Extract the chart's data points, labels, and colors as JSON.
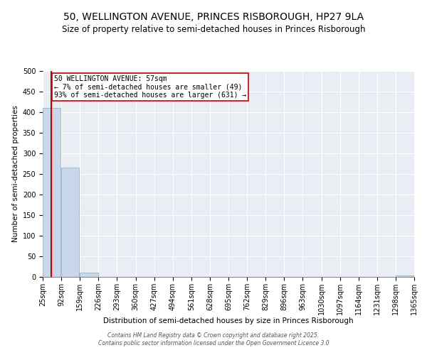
{
  "title": "50, WELLINGTON AVENUE, PRINCES RISBOROUGH, HP27 9LA",
  "subtitle": "Size of property relative to semi-detached houses in Princes Risborough",
  "xlabel": "Distribution of semi-detached houses by size in Princes Risborough",
  "ylabel": "Number of semi-detached properties",
  "bar_values": [
    410,
    265,
    10,
    0,
    0,
    0,
    0,
    0,
    0,
    0,
    0,
    0,
    0,
    0,
    0,
    0,
    0,
    0,
    0,
    3,
    0
  ],
  "bin_edges": [
    25,
    92,
    159,
    226,
    293,
    360,
    427,
    494,
    561,
    628,
    695,
    762,
    829,
    896,
    963,
    1030,
    1097,
    1164,
    1231,
    1298,
    1365
  ],
  "x_tick_labels": [
    "25sqm",
    "92sqm",
    "159sqm",
    "226sqm",
    "293sqm",
    "360sqm",
    "427sqm",
    "494sqm",
    "561sqm",
    "628sqm",
    "695sqm",
    "762sqm",
    "829sqm",
    "896sqm",
    "963sqm",
    "1030sqm",
    "1097sqm",
    "1164sqm",
    "1231sqm",
    "1298sqm",
    "1365sqm"
  ],
  "property_size": 57,
  "property_label": "50 WELLINGTON AVENUE: 57sqm",
  "annotation_line1": "← 7% of semi-detached houses are smaller (49)",
  "annotation_line2": "93% of semi-detached houses are larger (631) →",
  "bar_color": "#c8d8ea",
  "bar_edge_color": "#8aaabb",
  "red_line_color": "#cc0000",
  "annotation_box_color": "#cc0000",
  "background_color": "#e8eef4",
  "grid_color": "#ffffff",
  "ylim": [
    0,
    500
  ],
  "title_fontsize": 10,
  "subtitle_fontsize": 8.5,
  "axis_label_fontsize": 7.5,
  "tick_fontsize": 7,
  "footer_text": "Contains HM Land Registry data © Crown copyright and database right 2025.\nContains public sector information licensed under the Open Government Licence 3.0"
}
